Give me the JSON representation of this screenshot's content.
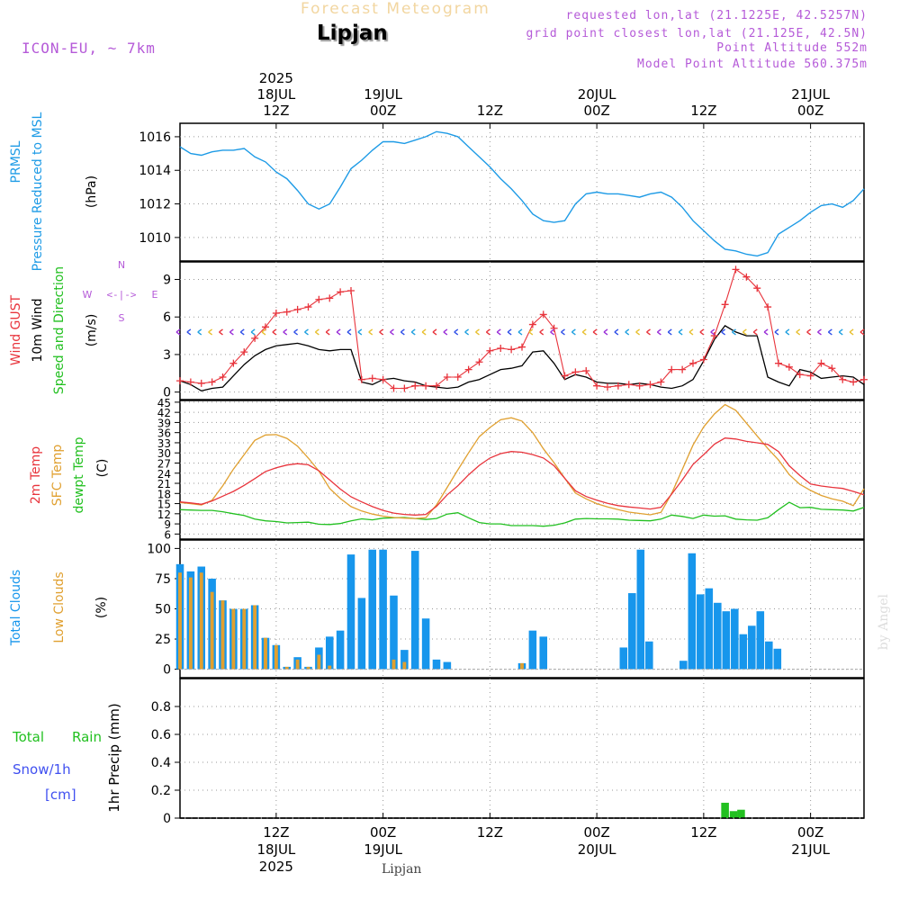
{
  "header": {
    "title": "Forecast Meteogram",
    "location": "Lipjan",
    "model": "ICON-EU, ~ 7km",
    "requested": "requested lon,lat (21.1225E, 42.5257N)",
    "gridpoint": "grid point closest lon,lat (21.125E, 42.5N)",
    "altitude": "Point Altitude 552m",
    "model_altitude": "Model Point Altitude 560.375m"
  },
  "footer": {
    "location": "Lipjan",
    "credit": "by Angel"
  },
  "colors": {
    "pressure": "#1e9be6",
    "gust": "#e8343c",
    "wind": "#000000",
    "t2m": "#e8343c",
    "sfc": "#e0a030",
    "dewpt": "#22c020",
    "total_clouds": "#1796ec",
    "low_clouds": "#e0a030",
    "rain": "#22c020",
    "snow": "#4050f0",
    "info": "#b55ad8",
    "grid": "#999999"
  },
  "chart_data": [
    {
      "id": "pressure",
      "type": "line",
      "ylabel_lines": [
        "PRMSL",
        "Pressure Reduced to MSL",
        "(hPa)"
      ],
      "yticks": [
        1010,
        1012,
        1014,
        1016
      ],
      "ylim": [
        1008.6,
        1016.8
      ],
      "x_hours": [
        0,
        1,
        2,
        3,
        4,
        5,
        6,
        7,
        8,
        9,
        10,
        11,
        12,
        13,
        14,
        15,
        16,
        17,
        18,
        19,
        20,
        21,
        22,
        23,
        24,
        25,
        26,
        27,
        28,
        29,
        30,
        31,
        32,
        33,
        34,
        35,
        36,
        37,
        38,
        39,
        40,
        41,
        42,
        43,
        44,
        45,
        46,
        47,
        48,
        49,
        50,
        51,
        52,
        53,
        54,
        55,
        56,
        57,
        58,
        59,
        60,
        61,
        62,
        63,
        64
      ],
      "values": [
        1015.4,
        1015.0,
        1014.9,
        1015.1,
        1015.2,
        1015.2,
        1015.3,
        1014.8,
        1014.5,
        1013.9,
        1013.5,
        1012.8,
        1012.0,
        1011.7,
        1012.0,
        1013.0,
        1014.1,
        1014.6,
        1015.2,
        1015.7,
        1015.7,
        1015.6,
        1015.8,
        1016.0,
        1016.3,
        1016.2,
        1016.0,
        1015.4,
        1014.8,
        1014.2,
        1013.5,
        1012.9,
        1012.2,
        1011.4,
        1011.0,
        1010.9,
        1011.0,
        1012.0,
        1012.6,
        1012.7,
        1012.6,
        1012.6,
        1012.5,
        1012.4,
        1012.6,
        1012.7,
        1012.4,
        1011.8,
        1011.0,
        1010.4,
        1009.8,
        1009.3,
        1009.2,
        1009.0,
        1008.9,
        1009.1,
        1010.2,
        1010.6,
        1011.0,
        1011.5,
        1011.9,
        1012.0,
        1011.8,
        1012.2,
        1012.9
      ]
    },
    {
      "id": "wind",
      "type": "line",
      "ylabel_lines": [
        "Wind GUST",
        "10m Wind",
        "Speed and Direction",
        "(m/s)"
      ],
      "compass": {
        "n": "N",
        "s": "S",
        "w": "W",
        "e": "E",
        "arrow": "<-|->"
      },
      "yticks": [
        0,
        3,
        6,
        9
      ],
      "ylim": [
        -0.6,
        10.4
      ],
      "x_hours": [
        0,
        1,
        2,
        3,
        4,
        5,
        6,
        7,
        8,
        9,
        10,
        11,
        12,
        13,
        14,
        15,
        16,
        17,
        18,
        19,
        20,
        21,
        22,
        23,
        24,
        25,
        26,
        27,
        28,
        29,
        30,
        31,
        32,
        33,
        34,
        35,
        36,
        37,
        38,
        39,
        40,
        41,
        42,
        43,
        44,
        45,
        46,
        47,
        48,
        49,
        50,
        51,
        52,
        53,
        54,
        55,
        56,
        57,
        58,
        59,
        60,
        61,
        62,
        63,
        64
      ],
      "series": [
        {
          "name": "Wind GUST",
          "values": [
            0.9,
            0.8,
            0.7,
            0.8,
            1.2,
            2.3,
            3.2,
            4.3,
            5.2,
            6.3,
            6.4,
            6.6,
            6.8,
            7.4,
            7.5,
            8.0,
            8.1,
            1.0,
            1.1,
            1.0,
            0.3,
            0.3,
            0.5,
            0.5,
            0.5,
            1.2,
            1.2,
            1.8,
            2.4,
            3.3,
            3.5,
            3.4,
            3.6,
            5.4,
            6.2,
            5.1,
            1.3,
            1.6,
            1.7,
            0.5,
            0.4,
            0.5,
            0.6,
            0.5,
            0.6,
            0.8,
            1.8,
            1.8,
            2.3,
            2.6,
            4.5,
            7.0,
            9.8,
            9.2,
            8.3,
            6.8,
            2.3,
            2.0,
            1.4,
            1.3,
            2.3,
            1.9,
            1.0,
            0.8,
            1.0
          ]
        },
        {
          "name": "10m Wind",
          "values": [
            0.9,
            0.6,
            0.1,
            0.3,
            0.4,
            1.3,
            2.2,
            2.9,
            3.4,
            3.7,
            3.8,
            3.9,
            3.7,
            3.4,
            3.3,
            3.4,
            3.4,
            0.8,
            0.6,
            1.0,
            1.1,
            0.9,
            0.8,
            0.5,
            0.4,
            0.3,
            0.4,
            0.8,
            1.0,
            1.4,
            1.8,
            1.9,
            2.1,
            3.2,
            3.3,
            2.3,
            1.0,
            1.4,
            1.2,
            0.8,
            0.7,
            0.7,
            0.6,
            0.7,
            0.6,
            0.4,
            0.3,
            0.5,
            1.0,
            2.5,
            4.2,
            5.3,
            4.8,
            4.5,
            4.5,
            1.2,
            0.8,
            0.5,
            1.8,
            1.6,
            1.1,
            1.2,
            1.3,
            1.2,
            0.6
          ]
        }
      ]
    },
    {
      "id": "temperature",
      "type": "line",
      "ylabel_lines": [
        "2m Temp",
        "SFC Temp",
        "dewpt Temp",
        "(C)"
      ],
      "yticks": [
        6,
        9,
        12,
        15,
        18,
        21,
        24,
        27,
        30,
        33,
        36,
        39,
        42,
        45
      ],
      "ylim": [
        4.5,
        45.5
      ],
      "x_hours": [
        0,
        1,
        2,
        3,
        4,
        5,
        6,
        7,
        8,
        9,
        10,
        11,
        12,
        13,
        14,
        15,
        16,
        17,
        18,
        19,
        20,
        21,
        22,
        23,
        24,
        25,
        26,
        27,
        28,
        29,
        30,
        31,
        32,
        33,
        34,
        35,
        36,
        37,
        38,
        39,
        40,
        41,
        42,
        43,
        44,
        45,
        46,
        47,
        48,
        49,
        50,
        51,
        52,
        53,
        54,
        55,
        56,
        57,
        58,
        59,
        60,
        61,
        62,
        63,
        64
      ],
      "series": [
        {
          "name": "2m Temp",
          "values": [
            15.5,
            15.2,
            14.8,
            15.8,
            17.2,
            18.6,
            20.4,
            22.4,
            24.5,
            25.6,
            26.4,
            26.8,
            26.5,
            24.7,
            22.0,
            19.3,
            17.0,
            15.5,
            14.1,
            13.0,
            12.2,
            11.8,
            11.6,
            11.8,
            14.2,
            17.6,
            20.3,
            23.5,
            26.3,
            28.5,
            29.8,
            30.4,
            30.2,
            29.5,
            28.5,
            26.2,
            22.5,
            18.8,
            17.1,
            16.0,
            15.1,
            14.4,
            14.0,
            13.7,
            13.4,
            13.9,
            17.8,
            22.0,
            26.6,
            29.5,
            32.6,
            34.4,
            34.1,
            33.4,
            33.0,
            32.5,
            30.4,
            26.2,
            23.3,
            20.8,
            20.2,
            19.8,
            19.5,
            18.6,
            17.6
          ]
        },
        {
          "name": "SFC Temp",
          "values": [
            15.3,
            15.0,
            14.6,
            16.0,
            20.3,
            25.2,
            29.5,
            33.7,
            35.3,
            35.4,
            34.3,
            32.0,
            28.5,
            24.6,
            19.5,
            16.5,
            14.1,
            12.8,
            11.9,
            11.3,
            10.9,
            10.7,
            10.6,
            10.8,
            14.6,
            19.8,
            25.0,
            30.0,
            34.8,
            37.5,
            39.8,
            40.4,
            39.4,
            36.0,
            31.2,
            27.1,
            22.5,
            18.1,
            16.4,
            15.0,
            14.0,
            13.2,
            12.5,
            12.1,
            11.7,
            12.4,
            18.0,
            25.1,
            32.3,
            37.7,
            41.5,
            44.3,
            42.6,
            38.8,
            35.0,
            31.3,
            27.9,
            23.6,
            20.7,
            18.9,
            17.4,
            16.4,
            15.7,
            14.4,
            19.4
          ]
        },
        {
          "name": "dewpt Temp",
          "values": [
            13.2,
            13.1,
            13.0,
            13.0,
            12.6,
            12.0,
            11.5,
            10.4,
            9.9,
            9.7,
            9.3,
            9.4,
            9.5,
            8.9,
            8.8,
            9.1,
            9.9,
            10.5,
            10.2,
            10.7,
            10.8,
            10.9,
            10.6,
            10.3,
            10.6,
            11.9,
            12.3,
            10.8,
            9.4,
            9.0,
            9.0,
            8.5,
            8.5,
            8.5,
            8.3,
            8.6,
            9.3,
            10.4,
            10.6,
            10.5,
            10.5,
            10.4,
            10.1,
            10.0,
            9.9,
            10.4,
            11.6,
            11.2,
            10.6,
            11.6,
            11.3,
            11.4,
            10.4,
            10.2,
            10.1,
            10.8,
            13.2,
            15.4,
            13.8,
            13.9,
            13.3,
            13.2,
            13.1,
            12.8,
            13.9
          ]
        }
      ]
    },
    {
      "id": "clouds",
      "type": "bar",
      "ylabel_lines": [
        "Total Clouds",
        "Low Clouds",
        "(%)"
      ],
      "yticks": [
        0,
        25,
        50,
        75,
        100
      ],
      "ylim": [
        -7,
        107
      ],
      "x_hours": [
        0,
        1,
        2,
        3,
        4,
        5,
        6,
        7,
        8,
        9,
        10,
        11,
        12,
        13,
        14,
        15,
        16,
        17,
        18,
        19,
        20,
        21,
        22,
        23,
        24,
        25,
        26,
        27,
        28,
        29,
        30,
        31,
        32,
        33,
        34,
        35,
        36,
        37,
        38,
        39,
        40,
        41,
        42,
        43,
        44,
        45,
        46,
        47,
        48,
        49,
        50,
        51,
        52,
        53,
        54,
        55,
        56,
        57,
        58,
        59,
        60,
        61,
        62,
        63,
        64
      ],
      "series": [
        {
          "name": "Total Clouds",
          "values": [
            87,
            81,
            85,
            75,
            57,
            50,
            50,
            53,
            26,
            20,
            2,
            10,
            2,
            18,
            27,
            32,
            95,
            59,
            99,
            99,
            61,
            16,
            98,
            42,
            8,
            6,
            0,
            0,
            0,
            0,
            0,
            0,
            5,
            32,
            27,
            0,
            0,
            0,
            0,
            0,
            0,
            0,
            0,
            0,
            0,
            0,
            0,
            0,
            0,
            0,
            0,
            0,
            0,
            0,
            0,
            0,
            0,
            0,
            0,
            0,
            0,
            0,
            0,
            0,
            0
          ]
        },
        {
          "name": "Low Clouds",
          "values": [
            80,
            76,
            80,
            64,
            57,
            50,
            50,
            53,
            26,
            20,
            2,
            8,
            2,
            12,
            3,
            0,
            0,
            0,
            0,
            0,
            8,
            6,
            0,
            0,
            0,
            0,
            0,
            0,
            0,
            0,
            0,
            0,
            5,
            0,
            0,
            0,
            0,
            0,
            0,
            0,
            0,
            0,
            0,
            0,
            0,
            0,
            0,
            0,
            0,
            0,
            0,
            0,
            0,
            0,
            0,
            0,
            0,
            0,
            0,
            0,
            0,
            0,
            0,
            0,
            0
          ]
        }
      ],
      "extra_total": [
        {
          "x": 41.5,
          "v": 18
        },
        {
          "x": 42.3,
          "v": 63
        },
        {
          "x": 43.1,
          "v": 99
        },
        {
          "x": 43.9,
          "v": 23
        },
        {
          "x": 47.1,
          "v": 7
        },
        {
          "x": 47.9,
          "v": 96
        },
        {
          "x": 48.7,
          "v": 62
        },
        {
          "x": 49.5,
          "v": 67
        },
        {
          "x": 50.3,
          "v": 55
        },
        {
          "x": 51.1,
          "v": 48
        },
        {
          "x": 51.9,
          "v": 50
        },
        {
          "x": 52.7,
          "v": 29
        },
        {
          "x": 53.5,
          "v": 36
        },
        {
          "x": 54.3,
          "v": 48
        },
        {
          "x": 55.1,
          "v": 23
        },
        {
          "x": 55.9,
          "v": 17
        }
      ]
    },
    {
      "id": "precip",
      "type": "bar",
      "ylabel_lines": [
        "1hr Precip (mm)"
      ],
      "left_labels": [
        "Total",
        "Rain",
        "Snow/1h",
        "[cm]"
      ],
      "yticks": [
        0,
        0.2,
        0.4,
        0.6,
        0.8
      ],
      "ylim": [
        0,
        1.0
      ],
      "series": [
        {
          "name": "Total Rain",
          "points": [
            {
              "x": 51.0,
              "v": 0.11
            },
            {
              "x": 51.8,
              "v": 0.05
            },
            {
              "x": 52.5,
              "v": 0.06
            }
          ]
        }
      ]
    }
  ],
  "time_axis": {
    "top_ticks": [
      {
        "hour": 9,
        "lines": [
          "2025",
          "18JUL",
          "12Z"
        ]
      },
      {
        "hour": 19,
        "lines": [
          "19JUL",
          "00Z"
        ]
      },
      {
        "hour": 29,
        "lines": [
          "12Z"
        ]
      },
      {
        "hour": 39,
        "lines": [
          "20JUL",
          "00Z"
        ]
      },
      {
        "hour": 49,
        "lines": [
          "12Z"
        ]
      },
      {
        "hour": 59,
        "lines": [
          "21JUL",
          "00Z"
        ]
      }
    ],
    "bottom_ticks": [
      {
        "hour": 9,
        "lines": [
          "12Z",
          "18JUL",
          "2025"
        ]
      },
      {
        "hour": 19,
        "lines": [
          "00Z",
          "19JUL"
        ]
      },
      {
        "hour": 29,
        "lines": [
          "12Z"
        ]
      },
      {
        "hour": 39,
        "lines": [
          "00Z",
          "20JUL"
        ]
      },
      {
        "hour": 49,
        "lines": [
          "12Z"
        ]
      },
      {
        "hour": 59,
        "lines": [
          "00Z",
          "21JUL"
        ]
      }
    ],
    "x_range": [
      0,
      64
    ]
  }
}
